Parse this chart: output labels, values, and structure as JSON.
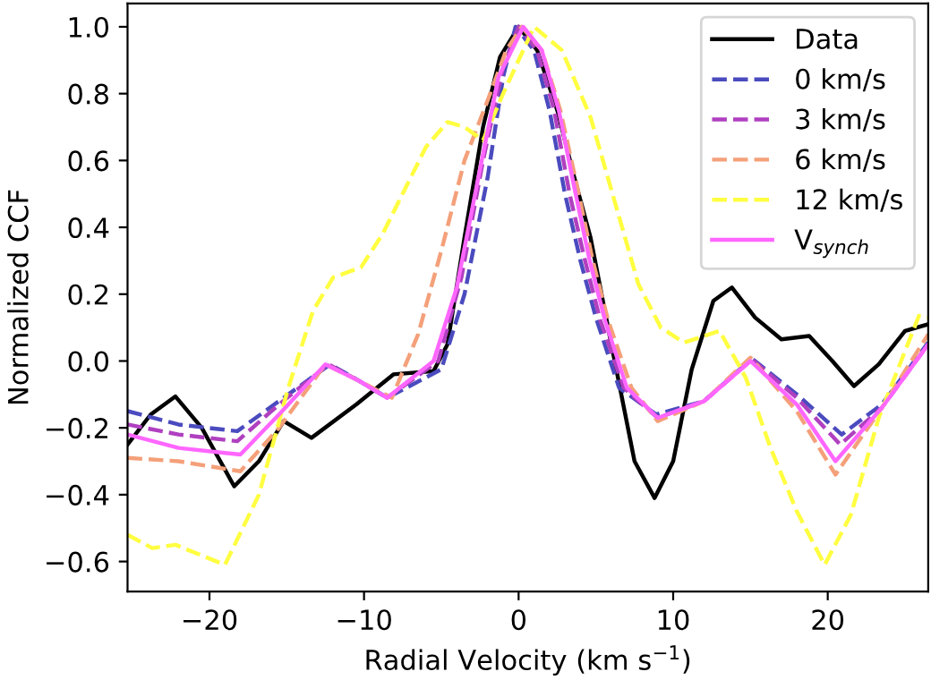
{
  "chart_data": {
    "type": "line",
    "xlabel": "Radial Velocity (km s$^{−1}$)",
    "ylabel": "Normalized CCF",
    "xlim": [
      -25.3,
      26.5
    ],
    "ylim": [
      -0.69,
      1.07
    ],
    "xticks": [
      {
        "value": -20,
        "label": "−20"
      },
      {
        "value": -10,
        "label": "−10"
      },
      0,
      10,
      20
    ],
    "yticks": [
      {
        "value": -0.6,
        "label": "−0.6"
      },
      {
        "value": -0.4,
        "label": "−0.4"
      },
      {
        "value": -0.2,
        "label": "−0.2"
      },
      {
        "value": 0,
        "label": "0.0"
      },
      {
        "value": 0.2,
        "label": "0.2"
      },
      {
        "value": 0.4,
        "label": "0.4"
      },
      {
        "value": 0.6,
        "label": "0.6"
      },
      {
        "value": 0.8,
        "label": "0.8"
      },
      {
        "value": 1.0,
        "label": "1.0"
      }
    ],
    "legend": "top right",
    "grid": false,
    "series": [
      {
        "name": "Data",
        "color": "#000000",
        "line_style": "solid",
        "x": [
          -25.3,
          -23.8,
          -22.2,
          -20.5,
          -18.4,
          -16.8,
          -15.2,
          -13.4,
          -10.5,
          -8.1,
          -5.5,
          -4.6,
          -3.5,
          -2.3,
          -1.2,
          0,
          1.2,
          2.5,
          3.6,
          4.65,
          6.0,
          7.5,
          8.8,
          10.0,
          11.2,
          12.6,
          13.8,
          15.3,
          17.0,
          18.8,
          20.3,
          21.7,
          23.3,
          25.0,
          26.5
        ],
        "values": [
          -0.25,
          -0.16,
          -0.106,
          -0.2,
          -0.375,
          -0.3,
          -0.18,
          -0.23,
          -0.13,
          -0.04,
          -0.03,
          0.05,
          0.37,
          0.7,
          0.91,
          1.0,
          0.93,
          0.75,
          0.55,
          0.37,
          0.05,
          -0.3,
          -0.41,
          -0.3,
          -0.025,
          0.18,
          0.22,
          0.13,
          0.065,
          0.075,
          0.0,
          -0.075,
          -0.01,
          0.09,
          0.11
        ]
      },
      {
        "name": "0 km/s",
        "color": "#4b4bbf",
        "line_style": "dashed",
        "x": [
          -25.3,
          -22,
          -18.2,
          -15.5,
          -12.2,
          -10.3,
          -8.5,
          -5.0,
          -3.5,
          -2.0,
          -1.0,
          -0.2,
          1.0,
          2.0,
          3.0,
          4.0,
          5.0,
          6.5,
          8.9,
          12.0,
          15.1,
          18.0,
          20.9,
          23.5,
          26.5
        ],
        "values": [
          -0.15,
          -0.19,
          -0.21,
          -0.12,
          -0.01,
          -0.06,
          -0.11,
          -0.025,
          0.2,
          0.55,
          0.85,
          1.0,
          0.93,
          0.75,
          0.5,
          0.3,
          0.13,
          -0.08,
          -0.16,
          -0.12,
          0.007,
          -0.1,
          -0.22,
          -0.13,
          0.055
        ]
      },
      {
        "name": "3 km/s",
        "color": "#b040c0",
        "line_style": "dashed",
        "x": [
          -25.3,
          -22,
          -18.2,
          -15.5,
          -12.3,
          -10.3,
          -8.5,
          -5.2,
          -3.7,
          -2.3,
          -1.0,
          0.0,
          1.2,
          2.3,
          3.3,
          4.3,
          5.3,
          6.8,
          9.0,
          12.0,
          15.1,
          18.0,
          20.8,
          23.5,
          26.5
        ],
        "values": [
          -0.19,
          -0.22,
          -0.24,
          -0.13,
          -0.01,
          -0.06,
          -0.11,
          0.0,
          0.25,
          0.6,
          0.88,
          1.0,
          0.93,
          0.75,
          0.5,
          0.3,
          0.12,
          -0.08,
          -0.17,
          -0.12,
          0.005,
          -0.11,
          -0.25,
          -0.14,
          0.05
        ]
      },
      {
        "name": "6 km/s",
        "color": "#f4a07a",
        "line_style": "dashed",
        "x": [
          -25.3,
          -22,
          -18.0,
          -15.5,
          -12.5,
          -10.3,
          -8.2,
          -6.5,
          -5.0,
          -3.5,
          -2.0,
          -0.8,
          0.2,
          1.5,
          2.7,
          3.8,
          4.8,
          5.8,
          7.3,
          9.0,
          12.0,
          15.0,
          18.0,
          20.5,
          23.5,
          26.5
        ],
        "values": [
          -0.29,
          -0.3,
          -0.33,
          -0.2,
          -0.01,
          -0.06,
          -0.11,
          0.08,
          0.33,
          0.6,
          0.78,
          0.93,
          1.0,
          0.93,
          0.75,
          0.52,
          0.3,
          0.12,
          -0.08,
          -0.18,
          -0.12,
          0.01,
          -0.15,
          -0.34,
          -0.14,
          0.08
        ]
      },
      {
        "name": "12 km/s",
        "color": "#ffff40",
        "line_style": "dashed",
        "x": [
          -25.3,
          -23.7,
          -22.2,
          -19.0,
          -16.8,
          -14.9,
          -13.3,
          -12.0,
          -10.2,
          -8.8,
          -7.4,
          -6.0,
          -4.6,
          -3.5,
          -2.3,
          -1.0,
          1.0,
          2.8,
          4.65,
          6.2,
          7.75,
          9.2,
          10.7,
          13.0,
          14.7,
          16.3,
          18.0,
          19.8,
          21.5,
          23.3,
          25.9,
          26.5
        ],
        "values": [
          -0.52,
          -0.56,
          -0.55,
          -0.61,
          -0.4,
          -0.08,
          0.15,
          0.25,
          0.28,
          0.38,
          0.51,
          0.64,
          0.715,
          0.7,
          0.66,
          0.8,
          1.0,
          0.93,
          0.73,
          0.48,
          0.23,
          0.1,
          0.055,
          0.09,
          -0.05,
          -0.26,
          -0.45,
          -0.61,
          -0.46,
          -0.17,
          0.135,
          0.13
        ]
      },
      {
        "name": "V$_{synch}$",
        "color": "#ff66ff",
        "line_style": "solid",
        "x": [
          -25.3,
          -22,
          -18.0,
          -15.5,
          -12.5,
          -10.3,
          -8.5,
          -5.5,
          -4.0,
          -2.6,
          -1.3,
          0.3,
          1.5,
          2.6,
          3.6,
          4.6,
          5.6,
          7.0,
          9.0,
          12.0,
          15.0,
          18.0,
          20.5,
          23.5,
          26.5
        ],
        "values": [
          -0.22,
          -0.26,
          -0.28,
          -0.16,
          -0.01,
          -0.06,
          -0.11,
          0.0,
          0.22,
          0.55,
          0.85,
          1.0,
          0.93,
          0.75,
          0.52,
          0.3,
          0.12,
          -0.08,
          -0.17,
          -0.12,
          0.0,
          -0.13,
          -0.3,
          -0.14,
          0.05
        ]
      }
    ]
  }
}
